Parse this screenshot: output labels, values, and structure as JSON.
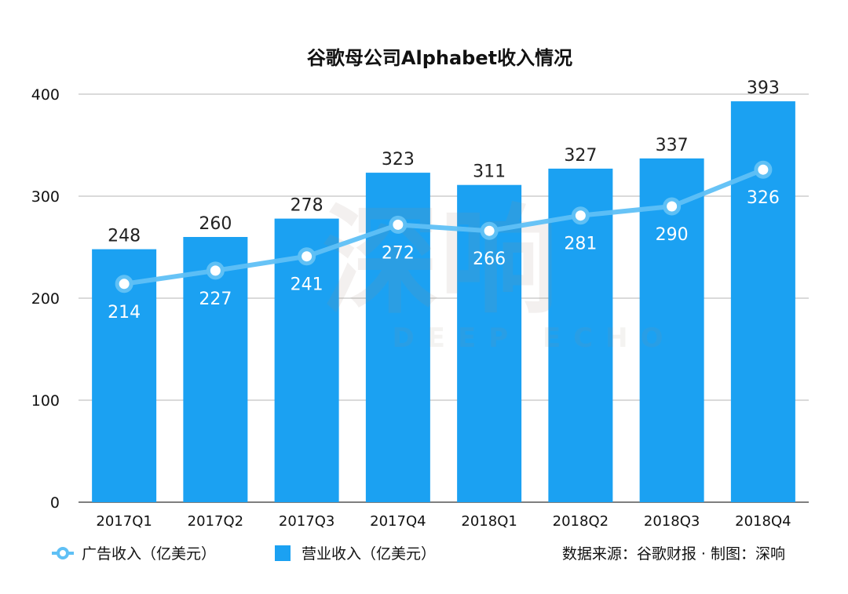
{
  "chart_data": {
    "type": "bar",
    "title": "谷歌母公司Alphabet收入情况",
    "categories": [
      "2017Q1",
      "2017Q2",
      "2017Q3",
      "2017Q4",
      "2018Q1",
      "2018Q2",
      "2018Q3",
      "2018Q4"
    ],
    "series": [
      {
        "name": "营业收入（亿美元）",
        "type": "bar",
        "color": "#1ba1f2",
        "values": [
          248,
          260,
          278,
          323,
          311,
          327,
          337,
          393
        ]
      },
      {
        "name": "广告收入（亿美元）",
        "type": "line",
        "color": "#5fc0f5",
        "values": [
          214,
          227,
          241,
          272,
          266,
          281,
          290,
          326
        ]
      }
    ],
    "ylim": [
      0,
      400
    ],
    "yticks": [
      0,
      100,
      200,
      300,
      400
    ],
    "grid": true,
    "legend": "bottom-left",
    "source": "数据来源：谷歌财报 · 制图：深响"
  },
  "watermark": {
    "main": "深响",
    "sub": "DEEP ECHO"
  }
}
